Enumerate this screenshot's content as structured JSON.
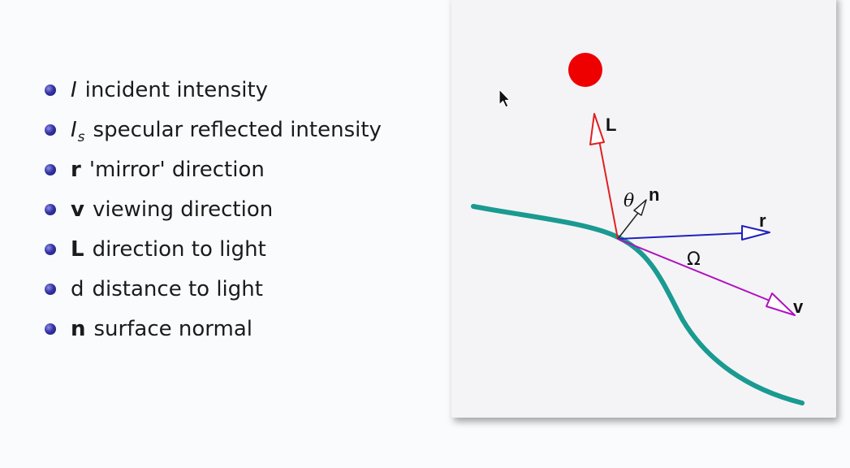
{
  "bullets": [
    {
      "symbol": "I",
      "style": "italic",
      "subscript": "",
      "text": "incident intensity"
    },
    {
      "symbol": "I",
      "style": "italic",
      "subscript": "s",
      "text": "specular reflected intensity"
    },
    {
      "symbol": "r",
      "style": "bold",
      "subscript": "",
      "text": "'mirror' direction"
    },
    {
      "symbol": "v",
      "style": "bold",
      "subscript": "",
      "text": "viewing direction"
    },
    {
      "symbol": "L",
      "style": "bold",
      "subscript": "",
      "text": "direction to light"
    },
    {
      "symbol": "d",
      "style": "normal",
      "subscript": "",
      "text": "distance to light"
    },
    {
      "symbol": "n",
      "style": "bold",
      "subscript": "",
      "text": "surface normal"
    }
  ],
  "diagram": {
    "labels": {
      "L": "L",
      "n": "n",
      "r": "r",
      "v": "v",
      "theta": "θ",
      "omega": "Ω"
    },
    "colors": {
      "light_source": "#ee0000",
      "surface": "#1a9a90",
      "L_vector": "#e02020",
      "r_vector": "#2020c0",
      "v_vector": "#b010c0",
      "n_vector": "#222222",
      "bullet": "#2b2b8f"
    },
    "cursor": "arrow-cursor-icon"
  }
}
